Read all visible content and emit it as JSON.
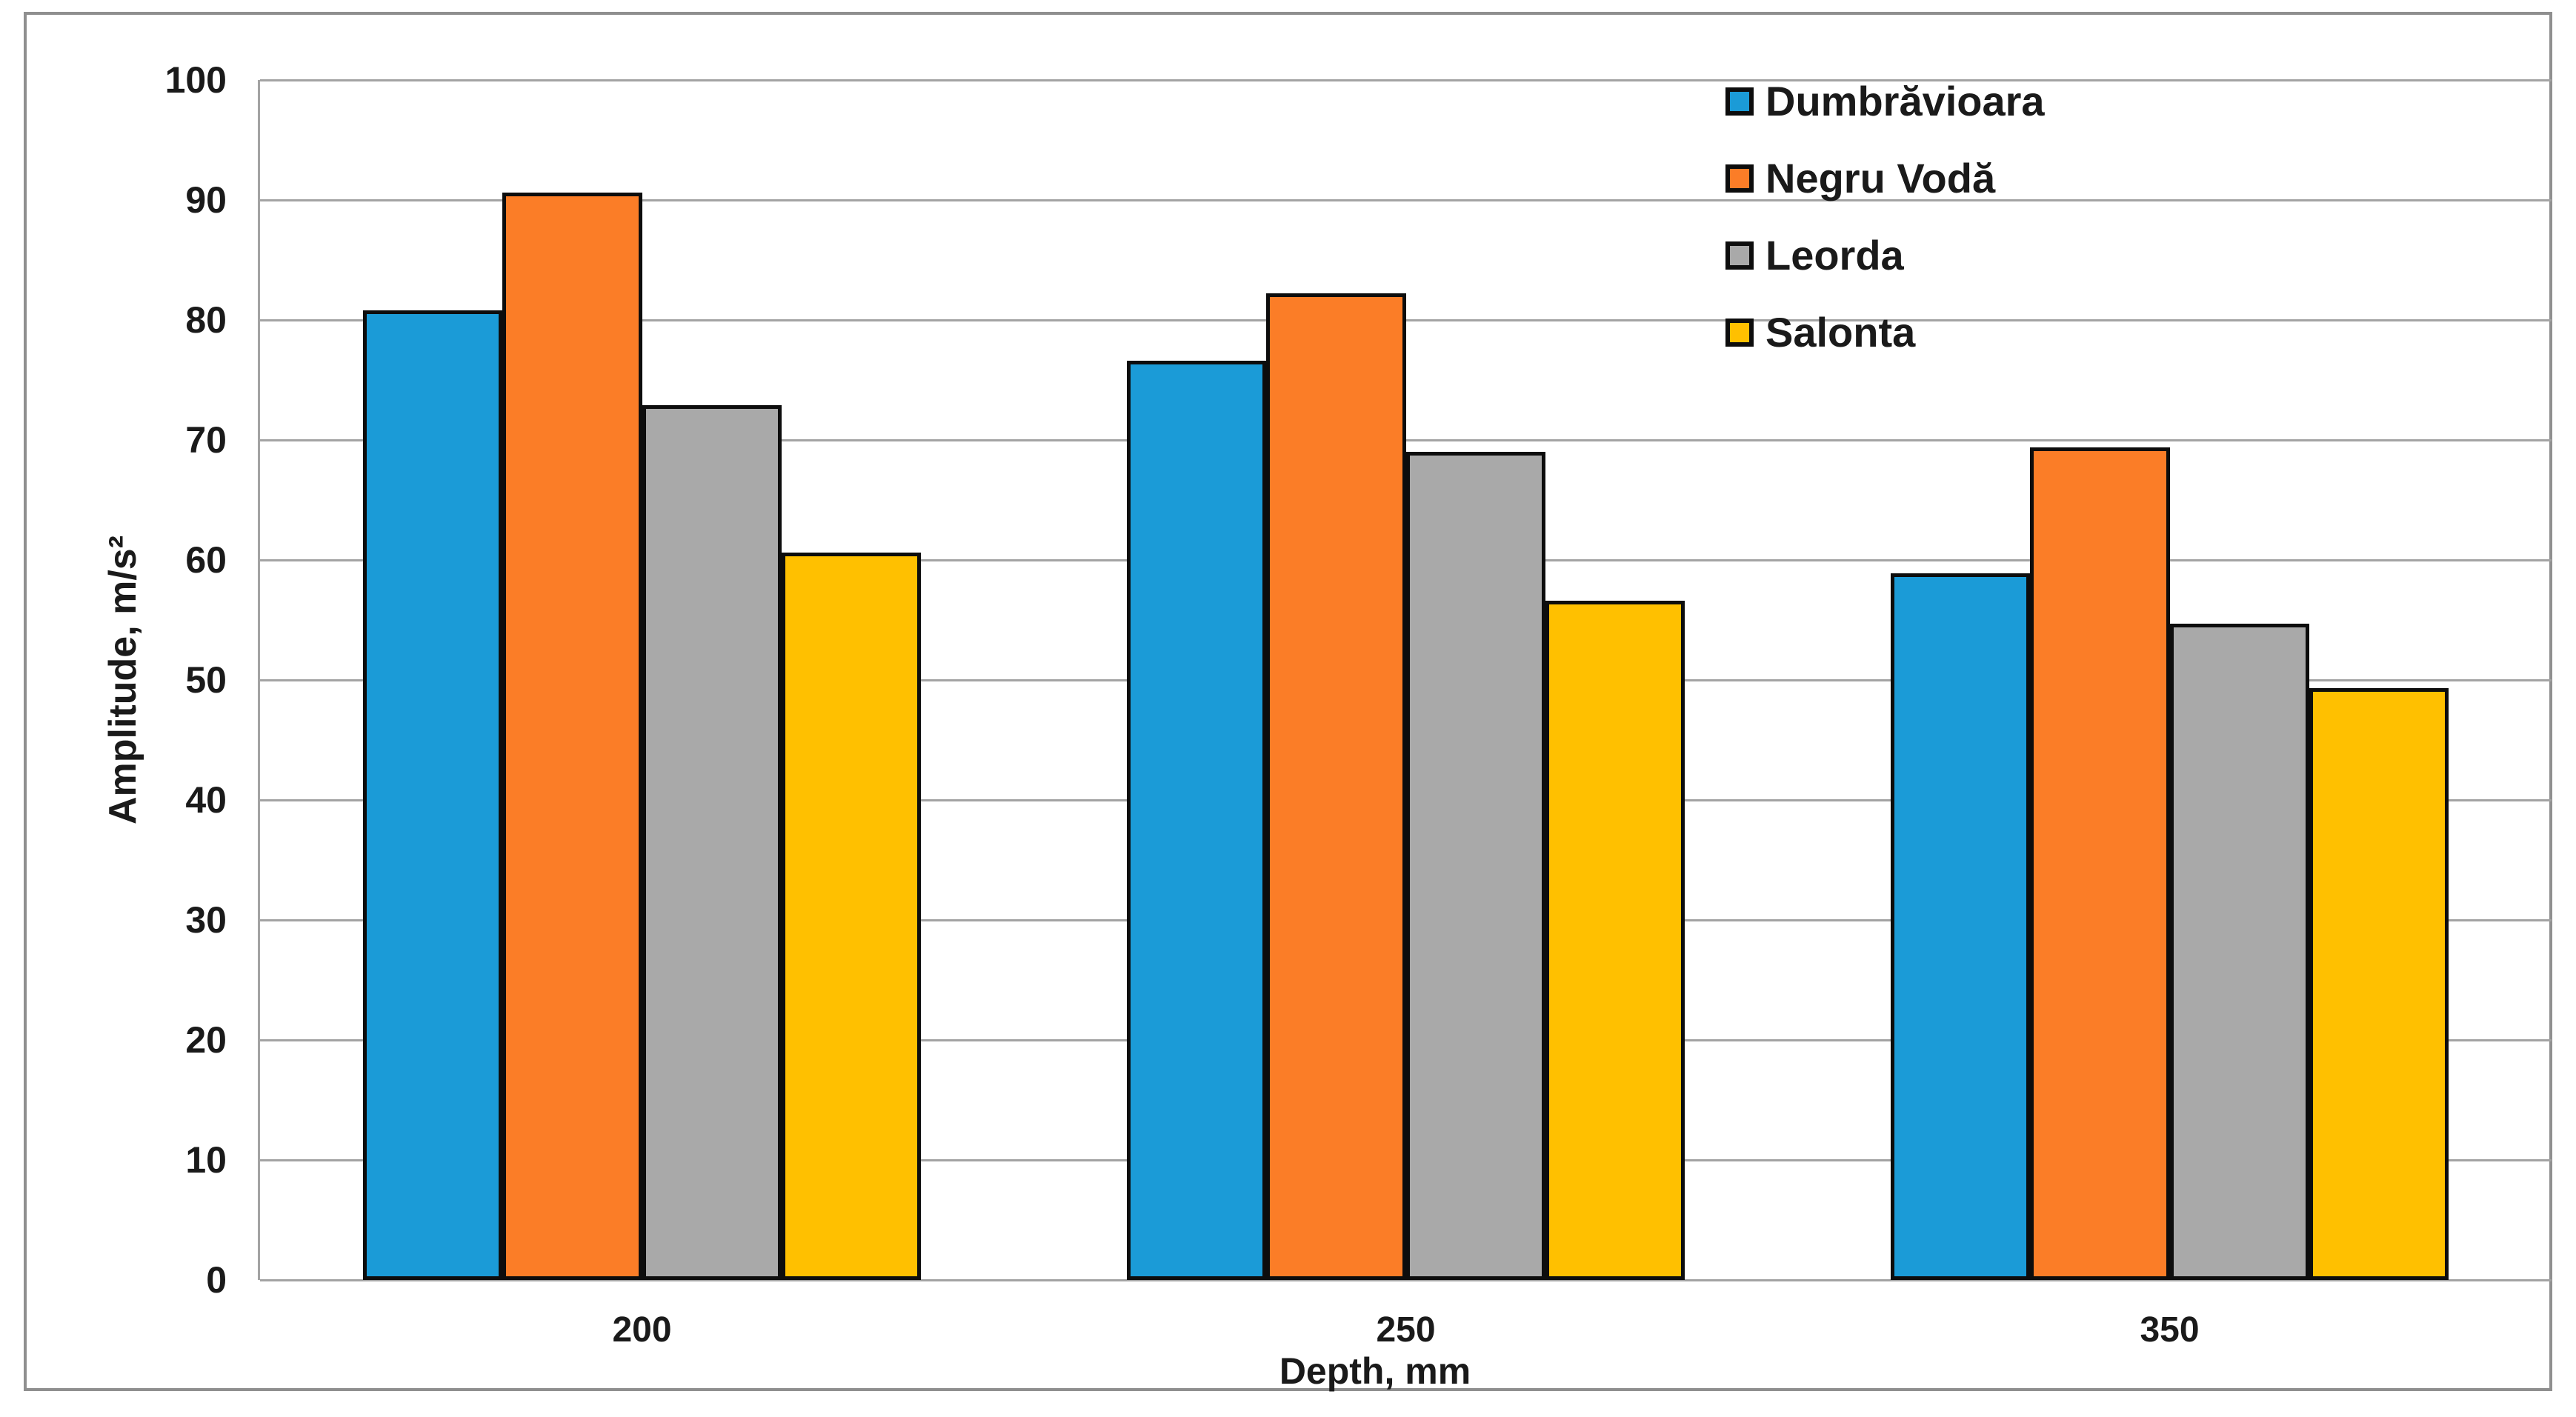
{
  "chart_data": {
    "type": "bar",
    "title": "",
    "categories": [
      "200",
      "250",
      "350"
    ],
    "series": [
      {
        "name": "Dumbrăvioara",
        "color": "#1B9BD7",
        "values": [
          80.8,
          76.6,
          58.9
        ]
      },
      {
        "name": "Negru Vodă",
        "color": "#FB7D27",
        "values": [
          90.6,
          82.2,
          69.4
        ]
      },
      {
        "name": "Leorda",
        "color": "#A9A9A9",
        "values": [
          72.9,
          69.0,
          54.7
        ]
      },
      {
        "name": "Salonta",
        "color": "#FFC000",
        "values": [
          60.6,
          56.6,
          49.3
        ]
      }
    ],
    "xlabel": "Depth, mm",
    "ylabel": "Amplitude, m/s²",
    "ylim": [
      0,
      100
    ],
    "ytick_step": 10,
    "yticks": [
      "0",
      "10",
      "20",
      "30",
      "40",
      "50",
      "60",
      "70",
      "80",
      "90",
      "100"
    ],
    "grid": "horizontal",
    "legend_position": "top-right-inside",
    "colors": {
      "bar_border": "#0d0d0d",
      "gridline": "#a3a3a3",
      "frame_border": "#8f8f8f",
      "text": "#1a1a1a",
      "background": "#ffffff"
    }
  }
}
